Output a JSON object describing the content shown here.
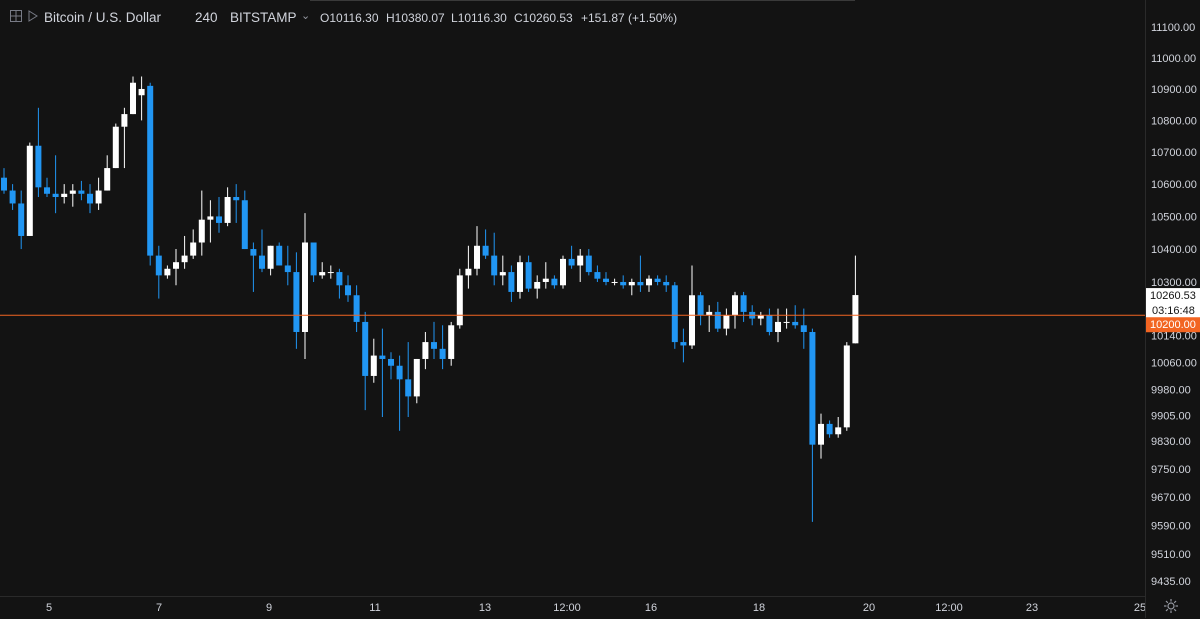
{
  "header": {
    "symbol": "Bitcoin / U.S. Dollar",
    "interval": "240",
    "exchange": "BITSTAMP",
    "ohlc": [
      {
        "key": "O",
        "value": "10116.30"
      },
      {
        "key": "H",
        "value": "10380.07"
      },
      {
        "key": "L",
        "value": "10116.30"
      },
      {
        "key": "C",
        "value": "10260.53"
      }
    ],
    "change": "+151.87 (+1.50%)",
    "icons": [
      "crosshair-icon",
      "symbol-flag-icon",
      "chevron-down-icon"
    ]
  },
  "colors": {
    "background": "#131313",
    "up_candle": "#ffffff",
    "down_candle": "#2196f3",
    "price_line": "#f26522",
    "last_price_label_bg": "#ffffff",
    "level_label_bg": "#f26522",
    "axis_text": "#d1d4dc"
  },
  "chart_data": {
    "type": "candlestick",
    "y_scale": "log",
    "ylim": [
      9380,
      11160
    ],
    "y_ticks": [
      "11100.00",
      "11000.00",
      "10900.00",
      "10800.00",
      "10700.00",
      "10600.00",
      "10500.00",
      "10400.00",
      "10300.00",
      "10140.00",
      "10060.00",
      "9980.00",
      "9905.00",
      "9830.00",
      "9750.00",
      "9670.00",
      "9590.00",
      "9510.00",
      "9435.00"
    ],
    "x_ticks": [
      "5",
      "7",
      "9",
      "11",
      "13",
      "12:00",
      "16",
      "18",
      "20",
      "12:00",
      "23",
      "25"
    ],
    "bar_interval": "240",
    "candles": [
      {
        "o": 10620,
        "h": 10650,
        "l": 10570,
        "c": 10580
      },
      {
        "o": 10580,
        "h": 10600,
        "l": 10520,
        "c": 10540
      },
      {
        "o": 10540,
        "h": 10580,
        "l": 10400,
        "c": 10440
      },
      {
        "o": 10440,
        "h": 10730,
        "l": 10440,
        "c": 10720
      },
      {
        "o": 10720,
        "h": 10840,
        "l": 10560,
        "c": 10590
      },
      {
        "o": 10590,
        "h": 10620,
        "l": 10560,
        "c": 10570
      },
      {
        "o": 10570,
        "h": 10690,
        "l": 10510,
        "c": 10560
      },
      {
        "o": 10560,
        "h": 10600,
        "l": 10540,
        "c": 10570
      },
      {
        "o": 10570,
        "h": 10600,
        "l": 10530,
        "c": 10580
      },
      {
        "o": 10580,
        "h": 10610,
        "l": 10550,
        "c": 10570
      },
      {
        "o": 10570,
        "h": 10600,
        "l": 10510,
        "c": 10540
      },
      {
        "o": 10540,
        "h": 10620,
        "l": 10520,
        "c": 10580
      },
      {
        "o": 10580,
        "h": 10690,
        "l": 10580,
        "c": 10650
      },
      {
        "o": 10650,
        "h": 10790,
        "l": 10650,
        "c": 10780
      },
      {
        "o": 10780,
        "h": 10840,
        "l": 10650,
        "c": 10820
      },
      {
        "o": 10820,
        "h": 10940,
        "l": 10820,
        "c": 10920
      },
      {
        "o": 10880,
        "h": 10940,
        "l": 10800,
        "c": 10900
      },
      {
        "o": 10910,
        "h": 10920,
        "l": 10350,
        "c": 10380
      },
      {
        "o": 10380,
        "h": 10410,
        "l": 10250,
        "c": 10320
      },
      {
        "o": 10320,
        "h": 10350,
        "l": 10310,
        "c": 10340
      },
      {
        "o": 10340,
        "h": 10400,
        "l": 10290,
        "c": 10360
      },
      {
        "o": 10360,
        "h": 10440,
        "l": 10340,
        "c": 10380
      },
      {
        "o": 10380,
        "h": 10460,
        "l": 10370,
        "c": 10420
      },
      {
        "o": 10420,
        "h": 10580,
        "l": 10380,
        "c": 10490
      },
      {
        "o": 10490,
        "h": 10550,
        "l": 10420,
        "c": 10500
      },
      {
        "o": 10500,
        "h": 10560,
        "l": 10450,
        "c": 10480
      },
      {
        "o": 10480,
        "h": 10590,
        "l": 10470,
        "c": 10560
      },
      {
        "o": 10560,
        "h": 10600,
        "l": 10480,
        "c": 10550
      },
      {
        "o": 10550,
        "h": 10580,
        "l": 10400,
        "c": 10400
      },
      {
        "o": 10400,
        "h": 10420,
        "l": 10270,
        "c": 10380
      },
      {
        "o": 10380,
        "h": 10460,
        "l": 10330,
        "c": 10340
      },
      {
        "o": 10340,
        "h": 10410,
        "l": 10320,
        "c": 10410
      },
      {
        "o": 10410,
        "h": 10420,
        "l": 10350,
        "c": 10350
      },
      {
        "o": 10350,
        "h": 10410,
        "l": 10290,
        "c": 10330
      },
      {
        "o": 10330,
        "h": 10390,
        "l": 10100,
        "c": 10150
      },
      {
        "o": 10150,
        "h": 10510,
        "l": 10070,
        "c": 10420
      },
      {
        "o": 10420,
        "h": 10420,
        "l": 10300,
        "c": 10320
      },
      {
        "o": 10320,
        "h": 10360,
        "l": 10310,
        "c": 10330
      },
      {
        "o": 10330,
        "h": 10350,
        "l": 10310,
        "c": 10330
      },
      {
        "o": 10330,
        "h": 10340,
        "l": 10250,
        "c": 10290
      },
      {
        "o": 10290,
        "h": 10320,
        "l": 10240,
        "c": 10260
      },
      {
        "o": 10260,
        "h": 10290,
        "l": 10150,
        "c": 10180
      },
      {
        "o": 10180,
        "h": 10210,
        "l": 9920,
        "c": 10020
      },
      {
        "o": 10020,
        "h": 10130,
        "l": 10000,
        "c": 10080
      },
      {
        "o": 10080,
        "h": 10160,
        "l": 9900,
        "c": 10070
      },
      {
        "o": 10070,
        "h": 10090,
        "l": 10010,
        "c": 10050
      },
      {
        "o": 10050,
        "h": 10080,
        "l": 9860,
        "c": 10010
      },
      {
        "o": 10010,
        "h": 10120,
        "l": 9900,
        "c": 9960
      },
      {
        "o": 9960,
        "h": 10070,
        "l": 9940,
        "c": 10070
      },
      {
        "o": 10070,
        "h": 10150,
        "l": 10040,
        "c": 10120
      },
      {
        "o": 10120,
        "h": 10180,
        "l": 10070,
        "c": 10100
      },
      {
        "o": 10100,
        "h": 10170,
        "l": 10040,
        "c": 10070
      },
      {
        "o": 10070,
        "h": 10180,
        "l": 10050,
        "c": 10170
      },
      {
        "o": 10170,
        "h": 10340,
        "l": 10160,
        "c": 10320
      },
      {
        "o": 10320,
        "h": 10410,
        "l": 10280,
        "c": 10340
      },
      {
        "o": 10340,
        "h": 10470,
        "l": 10320,
        "c": 10410
      },
      {
        "o": 10410,
        "h": 10460,
        "l": 10370,
        "c": 10380
      },
      {
        "o": 10380,
        "h": 10450,
        "l": 10290,
        "c": 10320
      },
      {
        "o": 10320,
        "h": 10380,
        "l": 10290,
        "c": 10330
      },
      {
        "o": 10330,
        "h": 10350,
        "l": 10240,
        "c": 10270
      },
      {
        "o": 10270,
        "h": 10380,
        "l": 10250,
        "c": 10360
      },
      {
        "o": 10360,
        "h": 10380,
        "l": 10270,
        "c": 10280
      },
      {
        "o": 10280,
        "h": 10320,
        "l": 10250,
        "c": 10300
      },
      {
        "o": 10300,
        "h": 10360,
        "l": 10280,
        "c": 10310
      },
      {
        "o": 10310,
        "h": 10320,
        "l": 10280,
        "c": 10290
      },
      {
        "o": 10290,
        "h": 10380,
        "l": 10280,
        "c": 10370
      },
      {
        "o": 10370,
        "h": 10410,
        "l": 10340,
        "c": 10350
      },
      {
        "o": 10350,
        "h": 10400,
        "l": 10300,
        "c": 10380
      },
      {
        "o": 10380,
        "h": 10400,
        "l": 10320,
        "c": 10330
      },
      {
        "o": 10330,
        "h": 10350,
        "l": 10300,
        "c": 10310
      },
      {
        "o": 10310,
        "h": 10330,
        "l": 10290,
        "c": 10300
      },
      {
        "o": 10300,
        "h": 10310,
        "l": 10290,
        "c": 10300
      },
      {
        "o": 10300,
        "h": 10320,
        "l": 10280,
        "c": 10290
      },
      {
        "o": 10290,
        "h": 10310,
        "l": 10260,
        "c": 10300
      },
      {
        "o": 10300,
        "h": 10380,
        "l": 10270,
        "c": 10290
      },
      {
        "o": 10290,
        "h": 10320,
        "l": 10270,
        "c": 10310
      },
      {
        "o": 10310,
        "h": 10320,
        "l": 10290,
        "c": 10300
      },
      {
        "o": 10300,
        "h": 10320,
        "l": 10270,
        "c": 10290
      },
      {
        "o": 10290,
        "h": 10300,
        "l": 10100,
        "c": 10120
      },
      {
        "o": 10120,
        "h": 10160,
        "l": 10060,
        "c": 10110
      },
      {
        "o": 10110,
        "h": 10350,
        "l": 10100,
        "c": 10260
      },
      {
        "o": 10260,
        "h": 10270,
        "l": 10170,
        "c": 10200
      },
      {
        "o": 10200,
        "h": 10230,
        "l": 10150,
        "c": 10210
      },
      {
        "o": 10210,
        "h": 10240,
        "l": 10150,
        "c": 10160
      },
      {
        "o": 10160,
        "h": 10220,
        "l": 10140,
        "c": 10200
      },
      {
        "o": 10200,
        "h": 10270,
        "l": 10160,
        "c": 10260
      },
      {
        "o": 10260,
        "h": 10270,
        "l": 10180,
        "c": 10210
      },
      {
        "o": 10210,
        "h": 10230,
        "l": 10170,
        "c": 10190
      },
      {
        "o": 10190,
        "h": 10210,
        "l": 10170,
        "c": 10200
      },
      {
        "o": 10200,
        "h": 10220,
        "l": 10140,
        "c": 10150
      },
      {
        "o": 10150,
        "h": 10220,
        "l": 10120,
        "c": 10180
      },
      {
        "o": 10180,
        "h": 10220,
        "l": 10160,
        "c": 10180
      },
      {
        "o": 10180,
        "h": 10230,
        "l": 10160,
        "c": 10170
      },
      {
        "o": 10170,
        "h": 10220,
        "l": 10100,
        "c": 10150
      },
      {
        "o": 10150,
        "h": 10160,
        "l": 9600,
        "c": 9820
      },
      {
        "o": 9820,
        "h": 9910,
        "l": 9780,
        "c": 9880
      },
      {
        "o": 9880,
        "h": 9890,
        "l": 9840,
        "c": 9850
      },
      {
        "o": 9850,
        "h": 9900,
        "l": 9840,
        "c": 9870
      },
      {
        "o": 9870,
        "h": 10120,
        "l": 9860,
        "c": 10110
      },
      {
        "o": 10116.3,
        "h": 10380.07,
        "l": 10116.3,
        "c": 10260.53
      }
    ],
    "horizontal_line": {
      "value": 10200.0,
      "label": "10200.00"
    },
    "last_price": {
      "value": 10260.53,
      "label": "10260.53",
      "countdown": "03:16:48"
    }
  }
}
